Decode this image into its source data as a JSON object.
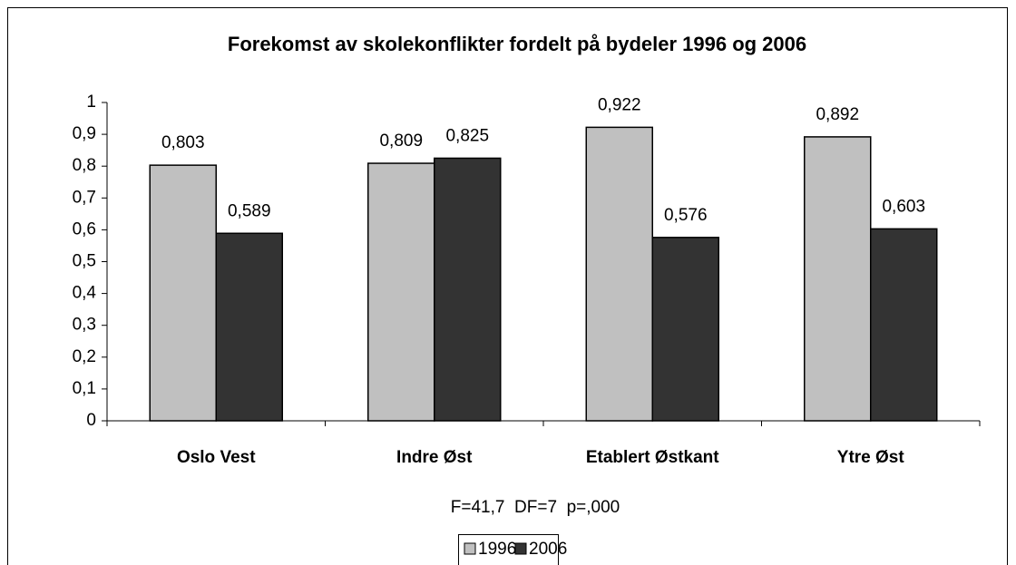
{
  "chart_data": {
    "type": "bar",
    "title": "Forekomst av skolekonflikter fordelt på bydeler 1996 og 2006",
    "annotation": "F=41,7  DF=7  p=,000",
    "categories": [
      "Oslo Vest",
      "Indre Øst",
      "Etablert Østkant",
      "Ytre Øst"
    ],
    "series": [
      {
        "name": "1996",
        "color": "#c0c0c0",
        "values": [
          0.803,
          0.809,
          0.922,
          0.892
        ],
        "value_labels": [
          "0,803",
          "0,809",
          "0,922",
          "0,892"
        ]
      },
      {
        "name": "2006",
        "color": "#333333",
        "values": [
          0.589,
          0.825,
          0.576,
          0.603
        ],
        "value_labels": [
          "0,589",
          "0,825",
          "0,576",
          "0,603"
        ]
      }
    ],
    "ylim": [
      0,
      1
    ],
    "yticks": [
      0,
      {
        "value": 0.1,
        "label": "0,1"
      },
      {
        "value": 0.2,
        "label": "0,2"
      },
      {
        "value": 0.3,
        "label": "0,3"
      },
      {
        "value": 0.4,
        "label": "0,4"
      },
      {
        "value": 0.5,
        "label": "0,5"
      },
      {
        "value": 0.6,
        "label": "0,6"
      },
      {
        "value": 0.7,
        "label": "0,7"
      },
      {
        "value": 0.8,
        "label": "0,8"
      },
      {
        "value": 0.9,
        "label": "0,9"
      },
      1
    ],
    "grid": false,
    "legend": "bottom"
  }
}
